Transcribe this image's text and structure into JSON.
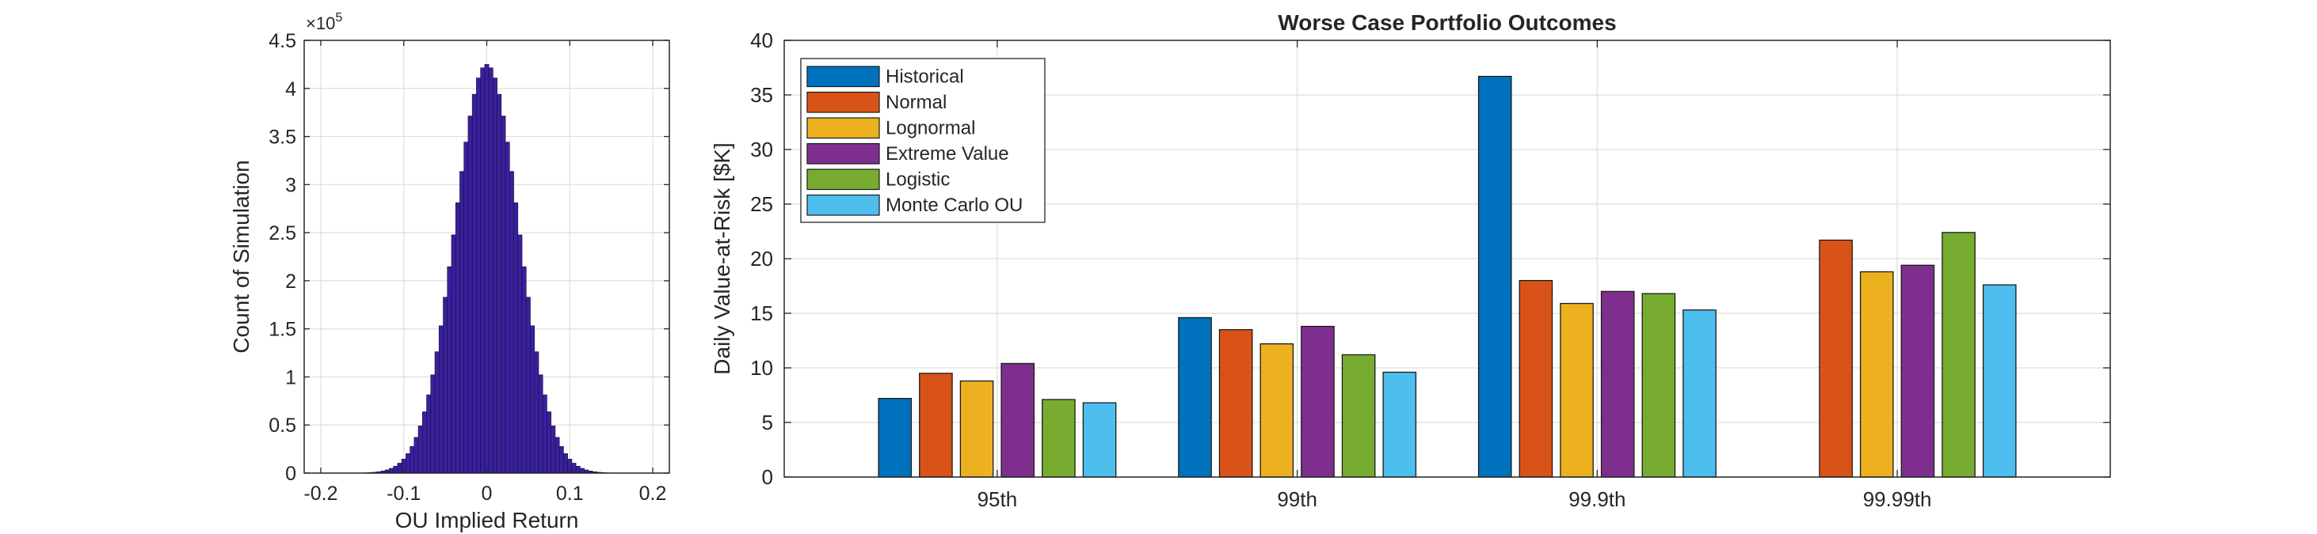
{
  "chart_data": [
    {
      "type": "bar",
      "subtype": "histogram",
      "title": "",
      "xlabel": "OU Implied Return",
      "ylabel": "Count of Simulation",
      "y_exponent_label": "×10",
      "y_exponent_power": "5",
      "xlim": [
        -0.22,
        0.22
      ],
      "ylim": [
        0,
        4.5
      ],
      "x_ticks": [
        -0.2,
        -0.1,
        0,
        0.1,
        0.2
      ],
      "x_tick_labels": [
        "-0.2",
        "-0.1",
        "0",
        "0.1",
        "0.2"
      ],
      "y_ticks": [
        0,
        0.5,
        1,
        1.5,
        2,
        2.5,
        3,
        3.5,
        4,
        4.5
      ],
      "y_tick_labels": [
        "0",
        "0.5",
        "1",
        "1.5",
        "2",
        "2.5",
        "3",
        "3.5",
        "4",
        "4.5"
      ],
      "bin_width": 0.005,
      "peak_center": 0,
      "peak_value": 4.25,
      "std_dev": 0.0385,
      "bar_color": "#3a1f9e",
      "grid": true
    },
    {
      "type": "bar",
      "title": "Worse Case Portfolio Outcomes",
      "xlabel": "",
      "ylabel": "Daily Value-at-Risk [$K]",
      "categories": [
        "95th",
        "99th",
        "99.9th",
        "99.99th"
      ],
      "ylim": [
        0,
        40
      ],
      "y_ticks": [
        0,
        5,
        10,
        15,
        20,
        25,
        30,
        35,
        40
      ],
      "y_tick_labels": [
        "0",
        "5",
        "10",
        "15",
        "20",
        "25",
        "30",
        "35",
        "40"
      ],
      "grid": true,
      "legend_position": "top-left",
      "series": [
        {
          "name": "Historical",
          "color": "#0072BD",
          "values": [
            7.2,
            14.6,
            36.7,
            null
          ]
        },
        {
          "name": "Normal",
          "color": "#D95319",
          "values": [
            9.5,
            13.5,
            18.0,
            21.7
          ]
        },
        {
          "name": "Lognormal",
          "color": "#EDB120",
          "values": [
            8.8,
            12.2,
            15.9,
            18.8
          ]
        },
        {
          "name": "Extreme Value",
          "color": "#7E2F8E",
          "values": [
            10.4,
            13.8,
            17.0,
            19.4
          ]
        },
        {
          "name": "Logistic",
          "color": "#77AC30",
          "values": [
            7.1,
            11.2,
            16.8,
            22.4
          ]
        },
        {
          "name": "Monte Carlo OU",
          "color": "#4DBEEE",
          "values": [
            6.8,
            9.6,
            15.3,
            17.6
          ]
        }
      ]
    }
  ]
}
